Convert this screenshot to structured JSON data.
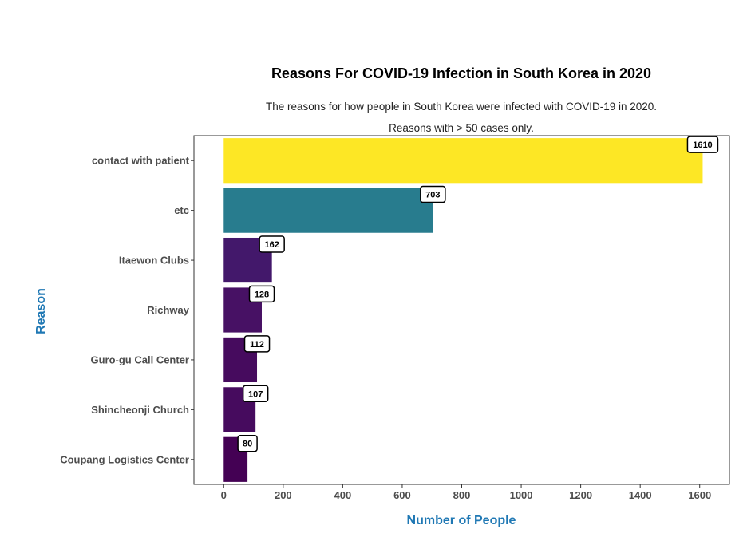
{
  "chart_data": {
    "type": "bar",
    "orientation": "horizontal",
    "title": "Reasons For COVID-19 Infection in South Korea in 2020",
    "subtitle_lines": [
      "The reasons for how people in South Korea were infected with COVID-19 in 2020.",
      "Reasons with > 50 cases only."
    ],
    "xlabel": "Number of People",
    "ylabel": "Reason",
    "xlim": [
      -100,
      1700
    ],
    "xticks": [
      0,
      200,
      400,
      600,
      800,
      1000,
      1200,
      1400,
      1600
    ],
    "categories": [
      "contact with patient",
      "etc",
      "Itaewon Clubs",
      "Richway",
      "Guro-gu Call Center",
      "Shincheonji Church",
      "Coupang Logistics Center"
    ],
    "values": [
      1610,
      703,
      162,
      128,
      112,
      107,
      80
    ],
    "bar_colors": [
      "#FDE725",
      "#287C8E",
      "#43186B",
      "#471164",
      "#460B5E",
      "#460B5E",
      "#440154"
    ],
    "axis_title_color": "#1F78B4",
    "grid": false
  }
}
